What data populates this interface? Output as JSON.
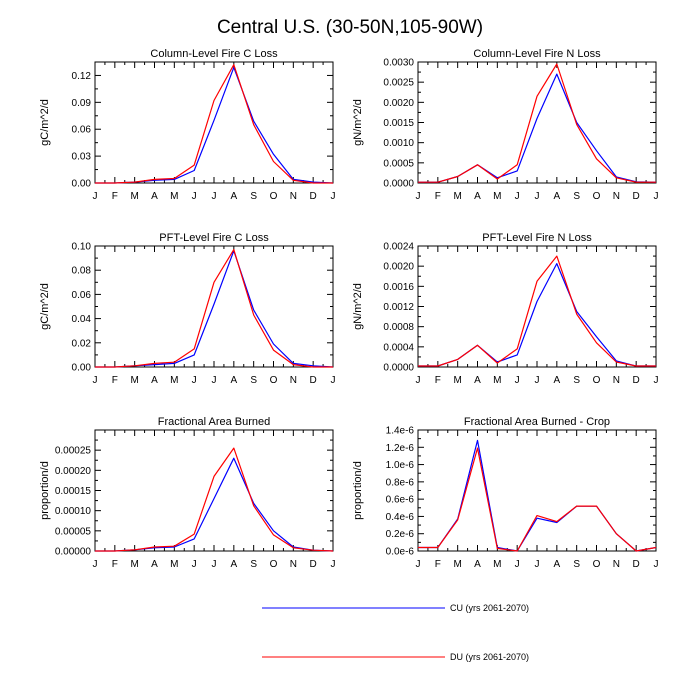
{
  "figure_title": "Central U.S. (30-50N,105-90W)",
  "legend": {
    "entries": [
      {
        "label": "CU (yrs 2061-2070)",
        "color": "#0000ff"
      },
      {
        "label": "DU (yrs 2061-2070)",
        "color": "#ff0000"
      }
    ]
  },
  "chart_data": [
    {
      "type": "line",
      "title": "Column-Level Fire C Loss",
      "ylabel": "gC/m^2/d",
      "categories": [
        "J",
        "F",
        "M",
        "A",
        "M",
        "J",
        "J",
        "A",
        "S",
        "O",
        "N",
        "D",
        "J"
      ],
      "ylim": [
        0,
        0.135
      ],
      "yticks": [
        0,
        0.03,
        0.06,
        0.09,
        0.12
      ],
      "ytick_labels": [
        "0.00",
        "0.03",
        "0.06",
        "0.09",
        "0.12"
      ],
      "series": [
        {
          "name": "CU (yrs 2061-2070)",
          "color": "#0000ff",
          "values": [
            0.0,
            0.0,
            0.001,
            0.003,
            0.004,
            0.014,
            0.07,
            0.129,
            0.069,
            0.032,
            0.004,
            0.001,
            0.0
          ]
        },
        {
          "name": "DU (yrs 2061-2070)",
          "color": "#ff0000",
          "values": [
            0.0,
            0.0,
            0.001,
            0.004,
            0.005,
            0.02,
            0.092,
            0.132,
            0.065,
            0.024,
            0.003,
            0.0,
            0.0
          ]
        }
      ]
    },
    {
      "type": "line",
      "title": "Column-Level Fire N Loss",
      "ylabel": "gN/m^2/d",
      "categories": [
        "J",
        "F",
        "M",
        "A",
        "M",
        "J",
        "J",
        "A",
        "S",
        "O",
        "N",
        "D",
        "J"
      ],
      "ylim": [
        0,
        0.003
      ],
      "yticks": [
        0,
        0.0005,
        0.001,
        0.0015,
        0.002,
        0.0025,
        0.003
      ],
      "ytick_labels": [
        "0.0000",
        "0.0005",
        "0.0010",
        "0.0015",
        "0.0020",
        "0.0025",
        "0.0030"
      ],
      "series": [
        {
          "name": "CU (yrs 2061-2070)",
          "color": "#0000ff",
          "values": [
            2e-05,
            2e-05,
            0.00016,
            0.00045,
            0.00013,
            0.0003,
            0.0016,
            0.0027,
            0.0015,
            0.0008,
            0.00015,
            3e-05,
            2e-05
          ]
        },
        {
          "name": "DU (yrs 2061-2070)",
          "color": "#ff0000",
          "values": [
            2e-05,
            2e-05,
            0.00016,
            0.00045,
            0.0001,
            0.00045,
            0.00215,
            0.00295,
            0.00145,
            0.0006,
            0.00013,
            2e-05,
            2e-05
          ]
        }
      ]
    },
    {
      "type": "line",
      "title": "PFT-Level Fire C Loss",
      "ylabel": "gC/m^2/d",
      "categories": [
        "J",
        "F",
        "M",
        "A",
        "M",
        "J",
        "J",
        "A",
        "S",
        "O",
        "N",
        "D",
        "J"
      ],
      "ylim": [
        0,
        0.1
      ],
      "yticks": [
        0,
        0.02,
        0.04,
        0.06,
        0.08,
        0.1
      ],
      "ytick_labels": [
        "0.00",
        "0.02",
        "0.04",
        "0.06",
        "0.08",
        "0.10"
      ],
      "series": [
        {
          "name": "CU (yrs 2061-2070)",
          "color": "#0000ff",
          "values": [
            0.0,
            0.0,
            0.001,
            0.002,
            0.003,
            0.01,
            0.052,
            0.096,
            0.047,
            0.019,
            0.003,
            0.001,
            0.0
          ]
        },
        {
          "name": "DU (yrs 2061-2070)",
          "color": "#ff0000",
          "values": [
            0.0,
            0.0,
            0.001,
            0.003,
            0.004,
            0.015,
            0.07,
            0.097,
            0.043,
            0.014,
            0.002,
            0.0,
            0.0
          ]
        }
      ]
    },
    {
      "type": "line",
      "title": "PFT-Level Fire N Loss",
      "ylabel": "gN/m^2/d",
      "categories": [
        "J",
        "F",
        "M",
        "A",
        "M",
        "J",
        "J",
        "A",
        "S",
        "O",
        "N",
        "D",
        "J"
      ],
      "ylim": [
        0,
        0.0024
      ],
      "yticks": [
        0,
        0.0004,
        0.0008,
        0.0012,
        0.0016,
        0.002,
        0.0024
      ],
      "ytick_labels": [
        "0.0000",
        "0.0004",
        "0.0008",
        "0.0012",
        "0.0016",
        "0.0020",
        "0.0024"
      ],
      "series": [
        {
          "name": "CU (yrs 2061-2070)",
          "color": "#0000ff",
          "values": [
            2e-05,
            2e-05,
            0.00015,
            0.00043,
            0.0001,
            0.00024,
            0.0013,
            0.00205,
            0.0011,
            0.0006,
            0.00012,
            2e-05,
            2e-05
          ]
        },
        {
          "name": "DU (yrs 2061-2070)",
          "color": "#ff0000",
          "values": [
            2e-05,
            2e-05,
            0.00015,
            0.00043,
            8e-05,
            0.00036,
            0.0017,
            0.0022,
            0.00105,
            0.00048,
            0.0001,
            2e-05,
            2e-05
          ]
        }
      ]
    },
    {
      "type": "line",
      "title": "Fractional Area Burned",
      "ylabel": "proportion/d",
      "categories": [
        "J",
        "F",
        "M",
        "A",
        "M",
        "J",
        "J",
        "A",
        "S",
        "O",
        "N",
        "D",
        "J"
      ],
      "ylim": [
        0,
        0.0003
      ],
      "yticks": [
        0,
        5e-05,
        0.0001,
        0.00015,
        0.0002,
        0.00025
      ],
      "ytick_labels": [
        "0.00000",
        "0.00005",
        "0.00010",
        "0.00015",
        "0.00020",
        "0.00025"
      ],
      "series": [
        {
          "name": "CU (yrs 2061-2070)",
          "color": "#0000ff",
          "values": [
            0.0,
            0.0,
            3e-06,
            8e-06,
            1e-05,
            3e-05,
            0.00013,
            0.00023,
            0.000118,
            5e-05,
            1e-05,
            2e-06,
            0.0
          ]
        },
        {
          "name": "DU (yrs 2061-2070)",
          "color": "#ff0000",
          "values": [
            0.0,
            0.0,
            3e-06,
            1e-05,
            1.2e-05,
            4.2e-05,
            0.000185,
            0.000255,
            0.000112,
            4e-05,
            8e-06,
            2e-06,
            0.0
          ]
        }
      ]
    },
    {
      "type": "line",
      "title": "Fractional Area Burned - Crop",
      "ylabel": "proportion/d",
      "categories": [
        "J",
        "F",
        "M",
        "A",
        "M",
        "J",
        "J",
        "A",
        "S",
        "O",
        "N",
        "D",
        "J"
      ],
      "ylim": [
        0,
        1.4e-06
      ],
      "yticks": [
        0,
        2e-07,
        4e-07,
        6e-07,
        8e-07,
        1e-06,
        1.2e-06,
        1.4e-06
      ],
      "ytick_labels": [
        "0.0e-6",
        "0.2e-6",
        "0.4e-6",
        "0.6e-6",
        "0.8e-6",
        "1.0e-6",
        "1.2e-6",
        "1.4e-6"
      ],
      "series": [
        {
          "name": "CU (yrs 2061-2070)",
          "color": "#0000ff",
          "values": [
            4e-08,
            4e-08,
            3.7e-07,
            1.28e-06,
            4e-08,
            0.0,
            3.8e-07,
            3.3e-07,
            5.2e-07,
            5.2e-07,
            2e-07,
            0.0,
            4e-08
          ]
        },
        {
          "name": "DU (yrs 2061-2070)",
          "color": "#ff0000",
          "values": [
            4e-08,
            4e-08,
            3.6e-07,
            1.19e-06,
            3e-08,
            0.0,
            4.1e-07,
            3.4e-07,
            5.2e-07,
            5.2e-07,
            2e-07,
            0.0,
            4e-08
          ]
        }
      ]
    }
  ]
}
